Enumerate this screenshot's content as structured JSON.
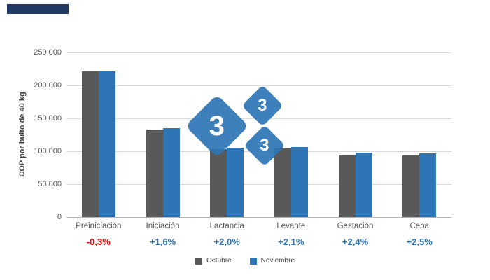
{
  "colors": {
    "header_bar": "#1f3864",
    "octubre_bar": "#595959",
    "noviembre_bar": "#2e75b6",
    "negative_change": "#ff0000",
    "positive_change": "#2e75b6",
    "gridline": "#d9d9d9",
    "watermark_blue": "#2e75b6"
  },
  "watermark": {
    "digits": [
      "3",
      "3",
      "3"
    ]
  },
  "chart_data": {
    "type": "bar",
    "ylabel": "COP por bulto de 40 kg",
    "ylim": [
      0,
      250000
    ],
    "grid": true,
    "legend_position": "bottom",
    "yticks": [
      {
        "value": 0,
        "label": "0"
      },
      {
        "value": 50000,
        "label": "50 000"
      },
      {
        "value": 100000,
        "label": "100 000"
      },
      {
        "value": 150000,
        "label": "150 000"
      },
      {
        "value": 200000,
        "label": "200 000"
      },
      {
        "value": 250000,
        "label": "250 000"
      }
    ],
    "categories": [
      "Preiniciación",
      "Iniciación",
      "Lactancia",
      "Levante",
      "Gestación",
      "Ceba"
    ],
    "series": [
      {
        "name": "Octubre",
        "color": "#595959",
        "values": [
          221800,
          133000,
          103200,
          104600,
          95200,
          94000
        ]
      },
      {
        "name": "Noviembre",
        "color": "#2e75b6",
        "values": [
          221100,
          135100,
          105300,
          106800,
          97500,
          96400
        ]
      }
    ],
    "change_labels": [
      {
        "text": "-0,3%",
        "color": "#ff0000"
      },
      {
        "text": "+1,6%",
        "color": "#2e75b6"
      },
      {
        "text": "+2,0%",
        "color": "#2e75b6"
      },
      {
        "text": "+2,1%",
        "color": "#2e75b6"
      },
      {
        "text": "+2,4%",
        "color": "#2e75b6"
      },
      {
        "text": "+2,5%",
        "color": "#2e75b6"
      }
    ]
  }
}
